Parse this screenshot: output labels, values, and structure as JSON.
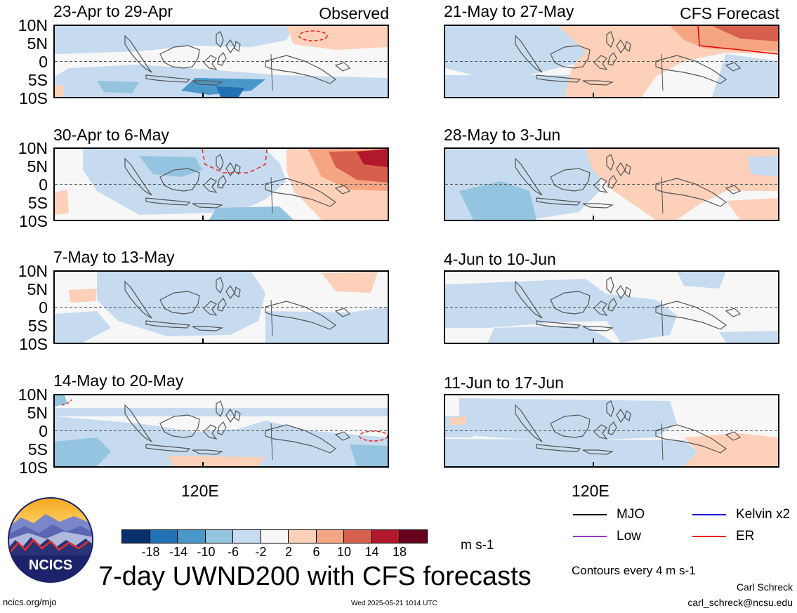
{
  "headers": {
    "left_tag": "Observed",
    "right_tag": "CFS Forecast"
  },
  "lat_labels": [
    "10N",
    "5N",
    "0",
    "5S",
    "10S"
  ],
  "lon_label": "120E",
  "panels_left": [
    {
      "title": "23-Apr to 29-Apr"
    },
    {
      "title": "30-Apr to 6-May"
    },
    {
      "title": "7-May to 13-May"
    },
    {
      "title": "14-May to 20-May"
    }
  ],
  "panels_right": [
    {
      "title": "21-May to 27-May"
    },
    {
      "title": "28-May to 3-Jun"
    },
    {
      "title": "4-Jun to 10-Jun"
    },
    {
      "title": "11-Jun to 17-Jun"
    }
  ],
  "colorbar": {
    "ticks": [
      "-18",
      "-14",
      "-10",
      "-6",
      "-2",
      "2",
      "6",
      "10",
      "14",
      "18"
    ],
    "colors": [
      "#08306b",
      "#2171b5",
      "#4a98c9",
      "#94c4df",
      "#c6dbef",
      "#f7f7f7",
      "#fdd0b9",
      "#f6a582",
      "#d6604d",
      "#b2182b",
      "#67001f"
    ],
    "units": "m s-1"
  },
  "legend": {
    "items": [
      {
        "label": "MJO",
        "color": "#000000"
      },
      {
        "label": "Kelvin x2",
        "color": "#0000cc"
      },
      {
        "label": "Low",
        "color": "#9933cc"
      },
      {
        "label": "ER",
        "color": "#ee1111"
      }
    ],
    "contour_note": "Contours every 4 m s-1"
  },
  "logo_text": "NCICS",
  "main_title": "7-day UWND200 with CFS forecasts",
  "footer": {
    "left": "ncics.org/mjo",
    "center": "Wed 2025-05-21 1014 UTC",
    "author": "Carl Schreck",
    "email": "carl_schreck@ncsu.edu"
  }
}
